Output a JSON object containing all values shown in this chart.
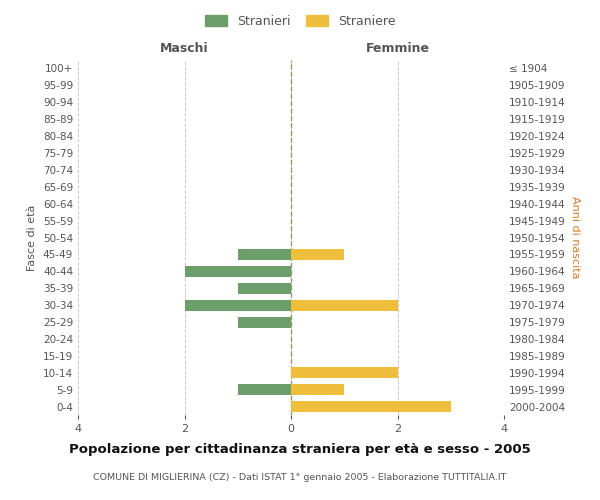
{
  "age_groups": [
    "100+",
    "95-99",
    "90-94",
    "85-89",
    "80-84",
    "75-79",
    "70-74",
    "65-69",
    "60-64",
    "55-59",
    "50-54",
    "45-49",
    "40-44",
    "35-39",
    "30-34",
    "25-29",
    "20-24",
    "15-19",
    "10-14",
    "5-9",
    "0-4"
  ],
  "birth_years": [
    "≤ 1904",
    "1905-1909",
    "1910-1914",
    "1915-1919",
    "1920-1924",
    "1925-1929",
    "1930-1934",
    "1935-1939",
    "1940-1944",
    "1945-1949",
    "1950-1954",
    "1955-1959",
    "1960-1964",
    "1965-1969",
    "1970-1974",
    "1975-1979",
    "1980-1984",
    "1985-1989",
    "1990-1994",
    "1995-1999",
    "2000-2004"
  ],
  "maschi": [
    0,
    0,
    0,
    0,
    0,
    0,
    0,
    0,
    0,
    0,
    0,
    1,
    2,
    1,
    2,
    1,
    0,
    0,
    0,
    1,
    0
  ],
  "femmine": [
    0,
    0,
    0,
    0,
    0,
    0,
    0,
    0,
    0,
    0,
    0,
    1,
    0,
    0,
    2,
    0,
    0,
    0,
    2,
    1,
    3
  ],
  "color_maschi": "#6b9e6b",
  "color_femmine": "#f0be3d",
  "title": "Popolazione per cittadinanza straniera per età e sesso - 2005",
  "subtitle": "COMUNE DI MIGLIERINA (CZ) - Dati ISTAT 1° gennaio 2005 - Elaborazione TUTTITALIA.IT",
  "ylabel_left": "Fasce di età",
  "ylabel_right": "Anni di nascita",
  "xlabel_left": "Maschi",
  "xlabel_right": "Femmine",
  "legend_maschi": "Stranieri",
  "legend_femmine": "Straniere",
  "xlim": 4,
  "bg_color": "#ffffff",
  "grid_color": "#cccccc",
  "center_line_color": "#999966",
  "anni_color": "#e07820",
  "label_color": "#555555",
  "title_color": "#111111",
  "subtitle_color": "#555555"
}
